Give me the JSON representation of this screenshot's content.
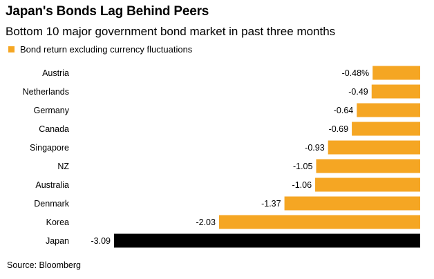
{
  "header": {
    "title": "Japan's Bonds Lag Behind Peers",
    "subtitle": "Bottom 10 major government bond market in past three months"
  },
  "legend": {
    "label": "Bond return excluding currency fluctuations",
    "color": "#f5a623"
  },
  "footer": {
    "source": "Source: Bloomberg"
  },
  "chart_data": {
    "type": "bar",
    "orientation": "horizontal",
    "categories": [
      "Austria",
      "Netherlands",
      "Germany",
      "Canada",
      "Singapore",
      "NZ",
      "Australia",
      "Denmark",
      "Korea",
      "Japan"
    ],
    "values": [
      -0.48,
      -0.49,
      -0.64,
      -0.69,
      -0.93,
      -1.05,
      -1.06,
      -1.37,
      -2.03,
      -3.09
    ],
    "value_labels": [
      "-0.48%",
      "-0.49",
      "-0.64",
      "-0.69",
      "-0.93",
      "-1.05",
      "-1.06",
      "-1.37",
      "-2.03",
      "-3.09"
    ],
    "colors": [
      "#f5a623",
      "#f5a623",
      "#f5a623",
      "#f5a623",
      "#f5a623",
      "#f5a623",
      "#f5a623",
      "#f5a623",
      "#f5a623",
      "#000000"
    ],
    "series": [
      {
        "name": "Bond return excluding currency fluctuations",
        "values": [
          -0.48,
          -0.49,
          -0.64,
          -0.69,
          -0.93,
          -1.05,
          -1.06,
          -1.37,
          -2.03,
          -3.09
        ]
      }
    ],
    "xlim": [
      -3.09,
      0
    ],
    "grid": false,
    "legend_position": "top-left"
  }
}
